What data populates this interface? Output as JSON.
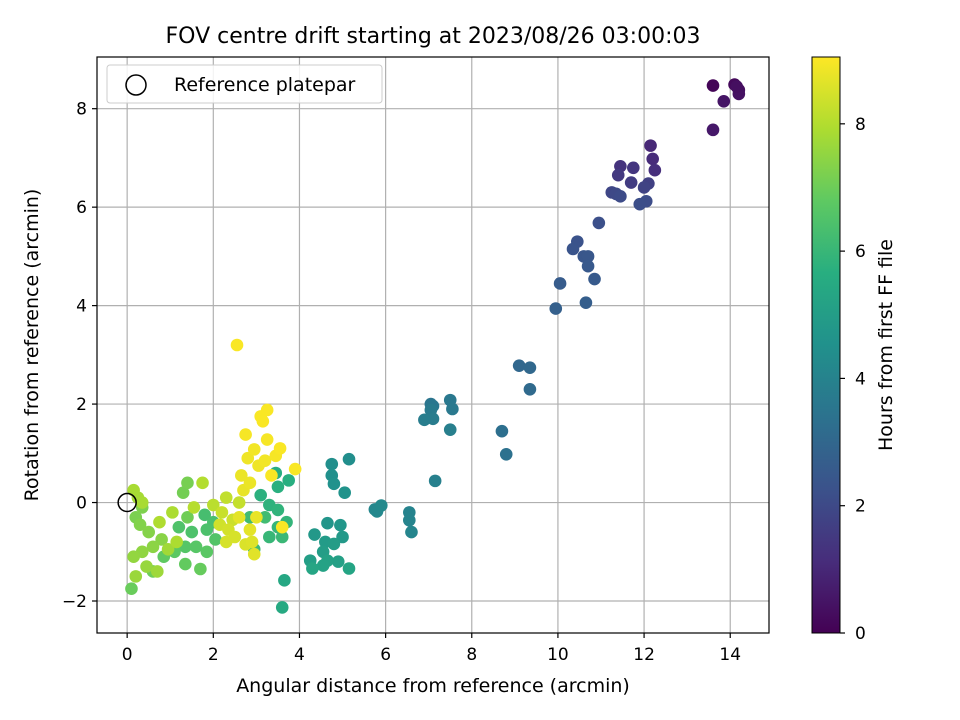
{
  "chart_data": {
    "type": "scatter",
    "title": "FOV centre drift starting at 2023/08/26 03:00:03",
    "xlabel": "Angular distance from reference (arcmin)",
    "ylabel": "Rotation from reference (arcmin)",
    "xlim": [
      -0.7,
      14.9
    ],
    "ylim": [
      -2.65,
      9.05
    ],
    "xticks": [
      0,
      2,
      4,
      6,
      8,
      10,
      12,
      14
    ],
    "yticks": [
      -2,
      0,
      2,
      4,
      6,
      8
    ],
    "xtick_labels": [
      "0",
      "2",
      "4",
      "6",
      "8",
      "10",
      "12",
      "14"
    ],
    "ytick_labels": [
      "−2",
      "0",
      "2",
      "4",
      "6",
      "8"
    ],
    "grid": true,
    "legend": {
      "placement": "top-left",
      "entries": [
        "Reference platepar"
      ]
    },
    "reference_point": {
      "x": 0,
      "y": 0,
      "marker": "hollow-circle"
    },
    "colorbar": {
      "label": "Hours from first FF file",
      "range": [
        0,
        9.05
      ],
      "ticks": [
        0,
        2,
        4,
        6,
        8
      ],
      "tick_labels": [
        "0",
        "2",
        "4",
        "6",
        "8"
      ],
      "colormap": "viridis"
    },
    "points": [
      [
        13.6,
        8.47,
        0.1
      ],
      [
        14.1,
        8.49,
        0.2
      ],
      [
        14.2,
        8.38,
        0.3
      ],
      [
        14.2,
        8.3,
        0.4
      ],
      [
        13.85,
        8.15,
        0.5
      ],
      [
        13.6,
        7.57,
        0.6
      ],
      [
        14.15,
        8.45,
        0.35
      ],
      [
        12.15,
        7.25,
        1.0
      ],
      [
        12.2,
        6.98,
        1.1
      ],
      [
        12.25,
        6.75,
        1.2
      ],
      [
        11.45,
        6.83,
        1.3
      ],
      [
        11.75,
        6.8,
        1.4
      ],
      [
        11.4,
        6.65,
        1.5
      ],
      [
        11.7,
        6.5,
        1.6
      ],
      [
        12.1,
        6.48,
        1.7
      ],
      [
        12.0,
        6.4,
        1.8
      ],
      [
        11.25,
        6.3,
        1.9
      ],
      [
        11.35,
        6.27,
        2.0
      ],
      [
        11.45,
        6.22,
        2.05
      ],
      [
        12.05,
        6.12,
        2.1
      ],
      [
        11.9,
        6.06,
        2.15
      ],
      [
        10.95,
        5.68,
        2.2
      ],
      [
        10.45,
        5.3,
        2.3
      ],
      [
        10.35,
        5.15,
        2.35
      ],
      [
        10.6,
        5.0,
        2.4
      ],
      [
        10.7,
        5.0,
        2.45
      ],
      [
        10.7,
        4.8,
        2.5
      ],
      [
        10.85,
        4.54,
        2.55
      ],
      [
        10.05,
        4.45,
        2.6
      ],
      [
        10.65,
        4.06,
        2.7
      ],
      [
        9.95,
        3.94,
        2.75
      ],
      [
        9.1,
        2.78,
        3.0
      ],
      [
        9.35,
        2.74,
        3.05
      ],
      [
        9.35,
        2.3,
        3.1
      ],
      [
        8.7,
        1.45,
        3.3
      ],
      [
        8.8,
        0.98,
        3.35
      ],
      [
        7.05,
        2.0,
        3.5
      ],
      [
        7.1,
        1.96,
        3.55
      ],
      [
        7.5,
        2.08,
        3.6
      ],
      [
        7.55,
        1.9,
        3.65
      ],
      [
        7.05,
        1.88,
        3.7
      ],
      [
        7.1,
        1.7,
        3.75
      ],
      [
        6.9,
        1.68,
        3.8
      ],
      [
        7.5,
        1.48,
        3.85
      ],
      [
        7.15,
        0.44,
        3.9
      ],
      [
        6.55,
        -0.2,
        4.0
      ],
      [
        6.55,
        -0.36,
        4.05
      ],
      [
        6.6,
        -0.6,
        4.1
      ],
      [
        5.75,
        -0.14,
        4.15
      ],
      [
        5.8,
        -0.18,
        4.2
      ],
      [
        5.9,
        -0.06,
        4.25
      ],
      [
        5.15,
        0.88,
        4.4
      ],
      [
        4.75,
        0.78,
        4.45
      ],
      [
        4.75,
        0.55,
        4.5
      ],
      [
        4.8,
        0.38,
        4.55
      ],
      [
        5.05,
        0.2,
        4.6
      ],
      [
        4.65,
        -0.42,
        4.7
      ],
      [
        4.95,
        -0.46,
        4.75
      ],
      [
        4.35,
        -0.65,
        4.8
      ],
      [
        5.0,
        -0.7,
        4.85
      ],
      [
        4.6,
        -0.8,
        4.9
      ],
      [
        4.8,
        -0.84,
        4.95
      ],
      [
        4.55,
        -1.0,
        5.0
      ],
      [
        4.25,
        -1.18,
        5.05
      ],
      [
        4.9,
        -1.2,
        5.1
      ],
      [
        4.65,
        -1.18,
        5.15
      ],
      [
        4.55,
        -1.28,
        5.2
      ],
      [
        5.15,
        -1.34,
        5.25
      ],
      [
        4.3,
        -1.34,
        5.3
      ],
      [
        3.65,
        -1.58,
        5.4
      ],
      [
        3.6,
        -2.13,
        5.45
      ],
      [
        3.45,
        0.6,
        5.6
      ],
      [
        3.75,
        0.45,
        5.65
      ],
      [
        3.5,
        0.32,
        5.7
      ],
      [
        3.1,
        0.15,
        5.75
      ],
      [
        3.3,
        -0.05,
        5.8
      ],
      [
        3.5,
        -0.15,
        5.85
      ],
      [
        3.7,
        -0.4,
        5.9
      ],
      [
        3.5,
        -0.5,
        5.95
      ],
      [
        3.3,
        -0.7,
        6.0
      ],
      [
        3.6,
        -0.7,
        6.05
      ],
      [
        2.95,
        -0.95,
        6.1
      ],
      [
        2.85,
        -0.3,
        6.15
      ],
      [
        3.2,
        -0.3,
        6.2
      ],
      [
        1.8,
        -0.25,
        6.3
      ],
      [
        2.0,
        -0.4,
        6.35
      ],
      [
        1.85,
        -0.55,
        6.4
      ],
      [
        1.5,
        -0.6,
        6.45
      ],
      [
        1.2,
        -0.5,
        6.5
      ],
      [
        2.05,
        -0.75,
        6.55
      ],
      [
        1.35,
        -0.9,
        6.6
      ],
      [
        1.6,
        -0.9,
        6.65
      ],
      [
        1.85,
        -1.0,
        6.7
      ],
      [
        1.1,
        -1.0,
        6.75
      ],
      [
        0.85,
        -1.1,
        6.8
      ],
      [
        1.35,
        -1.25,
        6.85
      ],
      [
        1.7,
        -1.35,
        6.9
      ],
      [
        0.1,
        -1.75,
        6.95
      ],
      [
        0.6,
        -1.4,
        7.0
      ],
      [
        1.4,
        -0.3,
        7.05
      ],
      [
        1.3,
        0.2,
        7.1
      ],
      [
        1.4,
        0.4,
        7.15
      ],
      [
        0.2,
        -0.3,
        7.2
      ],
      [
        0.35,
        -0.1,
        7.25
      ],
      [
        0.3,
        -0.45,
        7.3
      ],
      [
        0.5,
        -0.6,
        7.35
      ],
      [
        0.8,
        -0.75,
        7.4
      ],
      [
        0.6,
        -0.9,
        7.45
      ],
      [
        0.35,
        -1.0,
        7.5
      ],
      [
        0.15,
        -1.1,
        7.55
      ],
      [
        0.45,
        -1.3,
        7.6
      ],
      [
        0.2,
        -1.5,
        7.65
      ],
      [
        0.7,
        -1.4,
        7.7
      ],
      [
        0.95,
        -0.95,
        7.75
      ],
      [
        0.25,
        0.1,
        7.8
      ],
      [
        0.15,
        0.25,
        7.85
      ],
      [
        0.35,
        0.0,
        7.85
      ],
      [
        1.05,
        -0.2,
        7.9
      ],
      [
        1.15,
        -0.8,
        7.9
      ],
      [
        0.75,
        -0.4,
        7.95
      ],
      [
        1.75,
        0.4,
        8.0
      ],
      [
        1.55,
        -0.1,
        8.05
      ],
      [
        2.0,
        -0.05,
        8.1
      ],
      [
        2.3,
        0.1,
        8.2
      ],
      [
        2.6,
        0.0,
        8.25
      ],
      [
        2.2,
        -0.2,
        8.3
      ],
      [
        2.45,
        -0.35,
        8.35
      ],
      [
        2.15,
        -0.45,
        8.4
      ],
      [
        2.35,
        -0.55,
        8.45
      ],
      [
        2.5,
        -0.7,
        8.5
      ],
      [
        2.3,
        -0.8,
        8.5
      ],
      [
        2.75,
        -0.85,
        8.55
      ],
      [
        2.9,
        -0.8,
        8.6
      ],
      [
        2.95,
        -1.05,
        8.65
      ],
      [
        2.6,
        -0.3,
        8.7
      ],
      [
        2.85,
        -0.55,
        8.7
      ],
      [
        3.0,
        -0.3,
        8.75
      ],
      [
        2.7,
        0.25,
        8.75
      ],
      [
        2.85,
        0.4,
        8.8
      ],
      [
        2.65,
        0.55,
        8.8
      ],
      [
        3.05,
        0.75,
        8.85
      ],
      [
        2.8,
        0.9,
        8.85
      ],
      [
        3.2,
        0.85,
        8.9
      ],
      [
        2.95,
        1.08,
        8.9
      ],
      [
        3.45,
        0.95,
        8.95
      ],
      [
        2.75,
        1.38,
        8.95
      ],
      [
        3.25,
        1.28,
        8.95
      ],
      [
        3.55,
        1.1,
        9.0
      ],
      [
        3.1,
        1.75,
        9.0
      ],
      [
        3.25,
        1.88,
        9.0
      ],
      [
        3.15,
        1.65,
        9.0
      ],
      [
        3.35,
        0.55,
        9.0
      ],
      [
        3.9,
        0.68,
        9.0
      ],
      [
        3.6,
        -0.5,
        9.0
      ],
      [
        2.55,
        3.2,
        9.0
      ]
    ]
  }
}
